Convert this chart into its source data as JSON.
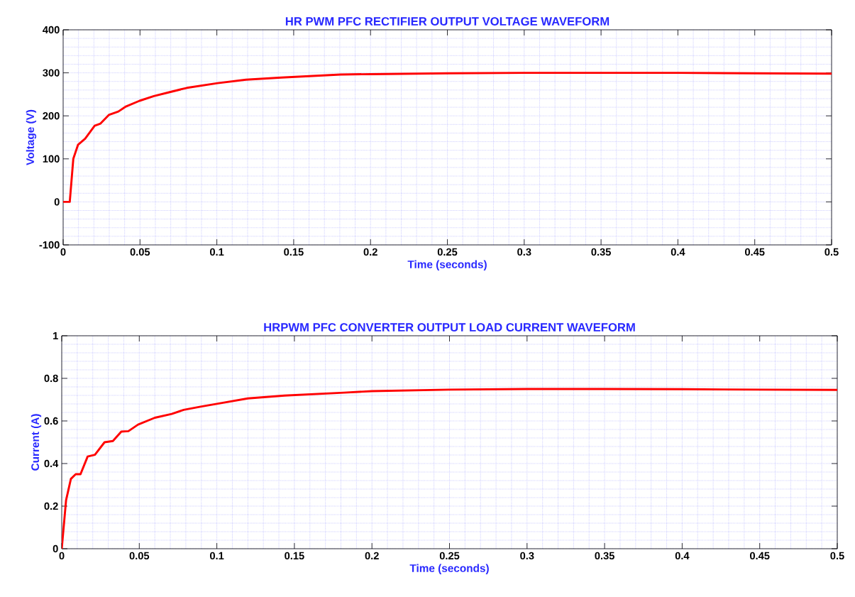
{
  "chart_data": [
    {
      "type": "line",
      "title": "HR PWM PFC RECTIFIER OUTPUT VOLTAGE WAVEFORM",
      "xlabel": "Time (seconds)",
      "ylabel": "Voltage (V)",
      "x": [
        0,
        0.0043,
        0.0066,
        0.0097,
        0.0143,
        0.0205,
        0.0243,
        0.0297,
        0.0359,
        0.0405,
        0.0497,
        0.059,
        0.068,
        0.0805,
        0.1005,
        0.119,
        0.142,
        0.1805,
        0.2,
        0.25,
        0.3,
        0.35,
        0.4,
        0.45,
        0.5
      ],
      "series": [
        {
          "color": "#ff0000",
          "values": [
            0,
            0,
            100,
            133,
            147,
            177,
            182,
            202,
            210,
            221,
            235,
            246,
            254,
            265,
            276,
            284,
            289,
            296,
            297,
            299,
            300,
            300,
            300,
            299,
            298
          ]
        }
      ],
      "xlim": [
        0,
        0.5
      ],
      "ylim": [
        -100,
        400
      ],
      "xticks": [
        0,
        0.05,
        0.1,
        0.15,
        0.2,
        0.25,
        0.3,
        0.35,
        0.4,
        0.45,
        0.5
      ],
      "yticks": [
        -100,
        0,
        100,
        200,
        300,
        400
      ],
      "grid": true
    },
    {
      "type": "line",
      "title": "HRPWM PFC CONVERTER OUTPUT LOAD CURRENT WAVEFORM",
      "xlabel": "Time (seconds)",
      "ylabel": "Current (A)",
      "x": [
        0,
        0.0028,
        0.0059,
        0.009,
        0.0121,
        0.0167,
        0.0214,
        0.0276,
        0.033,
        0.0384,
        0.043,
        0.0492,
        0.06,
        0.0709,
        0.0786,
        0.0895,
        0.102,
        0.12,
        0.1436,
        0.182,
        0.2,
        0.25,
        0.3,
        0.35,
        0.4,
        0.45,
        0.5
      ],
      "series": [
        {
          "color": "#ff0000",
          "values": [
            0,
            0.228,
            0.328,
            0.35,
            0.35,
            0.433,
            0.441,
            0.5,
            0.506,
            0.55,
            0.552,
            0.583,
            0.615,
            0.633,
            0.652,
            0.667,
            0.683,
            0.706,
            0.719,
            0.733,
            0.74,
            0.747,
            0.75,
            0.75,
            0.749,
            0.747,
            0.746
          ]
        }
      ],
      "xlim": [
        0,
        0.5
      ],
      "ylim": [
        0,
        1
      ],
      "xticks": [
        0,
        0.05,
        0.1,
        0.15,
        0.2,
        0.25,
        0.3,
        0.35,
        0.4,
        0.45,
        0.5
      ],
      "yticks": [
        0,
        0.2,
        0.4,
        0.6,
        0.8,
        1
      ],
      "grid": true
    }
  ]
}
